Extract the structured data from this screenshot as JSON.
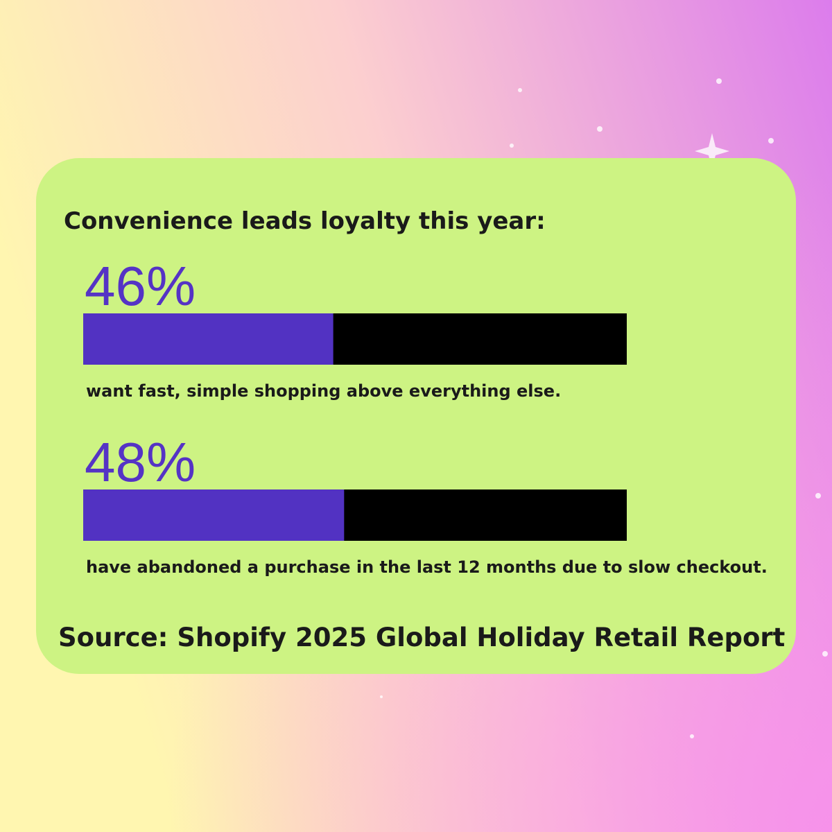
{
  "chart_data": {
    "type": "progress",
    "title": "Convenience leads loyalty this year:",
    "categories": [
      "want fast, simple shopping above everything else.",
      "have abandoned a purchase in the last 12 months due to slow checkout."
    ],
    "values": [
      46,
      48
    ],
    "value_labels": [
      "46%",
      "48%"
    ],
    "xlim": [
      0,
      100
    ],
    "color": "#5232c2",
    "track_color": "#000000",
    "source": "Source: Shopify 2025 Global Holiday Retail Report"
  }
}
